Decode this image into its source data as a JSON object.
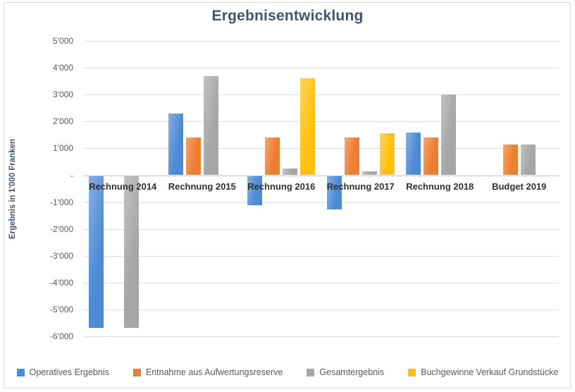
{
  "chart_data": {
    "type": "bar",
    "title": "Ergebnisentwicklung",
    "ylabel": "Ergebnis in 1'000 Franken",
    "xlabel": "",
    "ylim": [
      -6000,
      5000
    ],
    "ytick_step": 1000,
    "grid": true,
    "legend_position": "bottom",
    "categories": [
      "Rechnung 2014",
      "Rechnung 2015",
      "Rechnung 2016",
      "Rechnung 2017",
      "Rechnung 2018",
      "Budget 2019"
    ],
    "series": [
      {
        "name": "Operatives Ergebnis",
        "color": "#4E8BD4",
        "values": [
          -5650,
          2300,
          -1100,
          -1250,
          1600,
          null
        ]
      },
      {
        "name": "Entnahme aus Aufwertungsreserve",
        "color": "#ED7D31",
        "values": [
          null,
          1400,
          1400,
          1400,
          1400,
          1150
        ]
      },
      {
        "name": "Gesamtergebnis",
        "color": "#A6A6A6",
        "values": [
          -5650,
          3700,
          250,
          150,
          3000,
          1150
        ]
      },
      {
        "name": "Buchgewinne Verkauf Grundstücke",
        "color": "#FFC010",
        "values": [
          null,
          null,
          3600,
          1550,
          null,
          null
        ]
      }
    ],
    "yticks": [
      {
        "value": 5000,
        "label": "5'000"
      },
      {
        "value": 4000,
        "label": "4'000"
      },
      {
        "value": 3000,
        "label": "3'000"
      },
      {
        "value": 2000,
        "label": "2'000"
      },
      {
        "value": 1000,
        "label": "1'000"
      },
      {
        "value": 0,
        "label": "-"
      },
      {
        "value": -1000,
        "label": "-1'000"
      },
      {
        "value": -2000,
        "label": "-2'000"
      },
      {
        "value": -3000,
        "label": "-3'000"
      },
      {
        "value": -4000,
        "label": "-4'000"
      },
      {
        "value": -5000,
        "label": "-5'000"
      },
      {
        "value": -6000,
        "label": "-6'000"
      }
    ],
    "colors": {
      "title_text": "#44546A",
      "axis_text": "#595959",
      "category_text": "#303030",
      "gridline": "#DCDCDC",
      "zero_line": "#C2C2C2",
      "chart_border": "#D2DBE8"
    }
  }
}
